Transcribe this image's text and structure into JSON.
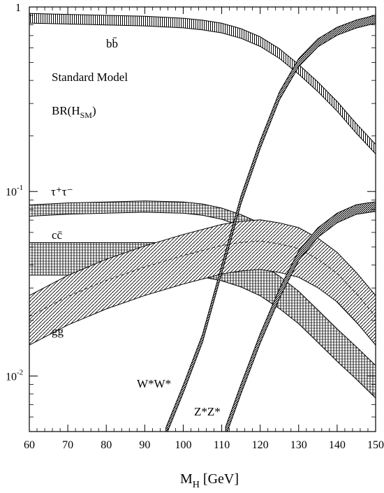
{
  "chart_data": {
    "type": "line",
    "scale": {
      "x": "linear",
      "y": "log"
    },
    "xlim": [
      60,
      150
    ],
    "ylim": [
      0.005,
      1
    ],
    "grid": false,
    "xlabel": {
      "main": "M",
      "sub": "H",
      "rest": " [GeV]"
    },
    "ylabel": "",
    "x_ticks": [
      60,
      70,
      80,
      90,
      100,
      110,
      120,
      130,
      140,
      150
    ],
    "y_ticks": [
      {
        "value": 1,
        "base": "1",
        "exp": ""
      },
      {
        "value": 0.1,
        "base": "10",
        "exp": "-1"
      },
      {
        "value": 0.01,
        "base": "10",
        "exp": "-2"
      }
    ],
    "annotations": {
      "standard_model": "Standard Model",
      "br": {
        "pre": "BR(H",
        "sub": "SM",
        "post": ")"
      }
    },
    "series": [
      {
        "name": "bb̄",
        "x": [
          60,
          70,
          80,
          90,
          100,
          105,
          110,
          115,
          120,
          125,
          130,
          135,
          140,
          145,
          150
        ],
        "y": [
          0.87,
          0.86,
          0.85,
          0.84,
          0.82,
          0.8,
          0.77,
          0.72,
          0.65,
          0.56,
          0.46,
          0.37,
          0.29,
          0.22,
          0.17
        ],
        "band": 0.06
      },
      {
        "name": "τ⁺τ⁻",
        "x": [
          60,
          70,
          80,
          90,
          100,
          105,
          110,
          115,
          120,
          125,
          130,
          135,
          140,
          145,
          150
        ],
        "y": [
          0.079,
          0.081,
          0.082,
          0.083,
          0.082,
          0.08,
          0.076,
          0.07,
          0.063,
          0.054,
          0.045,
          0.035,
          0.027,
          0.021,
          0.016
        ],
        "band": 0.07
      },
      {
        "name": "cc̄",
        "x": [
          60,
          70,
          80,
          90,
          100,
          105,
          110,
          115,
          120,
          125,
          130,
          135,
          140,
          145,
          150
        ],
        "y": [
          0.044,
          0.044,
          0.044,
          0.044,
          0.044,
          0.043,
          0.041,
          0.038,
          0.034,
          0.029,
          0.024,
          0.019,
          0.015,
          0.012,
          0.0095
        ],
        "band": 0.2
      },
      {
        "name": "gg",
        "x": [
          60,
          70,
          80,
          90,
          100,
          110,
          115,
          120,
          125,
          130,
          135,
          140,
          145,
          150
        ],
        "y": [
          0.021,
          0.027,
          0.033,
          0.039,
          0.045,
          0.051,
          0.053,
          0.054,
          0.052,
          0.049,
          0.043,
          0.036,
          0.028,
          0.021
        ],
        "band": 0.3
      },
      {
        "name": "W*W*",
        "x": [
          95.5,
          100,
          105,
          110,
          115,
          120,
          125,
          130,
          135,
          140,
          145,
          150
        ],
        "y": [
          0.005,
          0.0085,
          0.016,
          0.038,
          0.09,
          0.18,
          0.33,
          0.5,
          0.64,
          0.74,
          0.81,
          0.86
        ],
        "band": 0.05
      },
      {
        "name": "Z*Z*",
        "x": [
          111,
          115,
          120,
          125,
          130,
          135,
          140,
          145,
          150
        ],
        "y": [
          0.005,
          0.0085,
          0.016,
          0.028,
          0.045,
          0.06,
          0.072,
          0.08,
          0.083
        ],
        "band": 0.06
      }
    ]
  }
}
